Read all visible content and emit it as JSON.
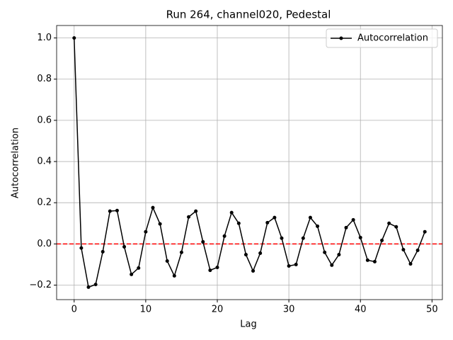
{
  "chart_data": {
    "type": "line",
    "title": "Run 264, channel020, Pedestal",
    "x_label": "Lag",
    "y_label": "Autocorrelation",
    "x": [
      0,
      1,
      2,
      3,
      4,
      5,
      6,
      7,
      8,
      9,
      10,
      11,
      12,
      13,
      14,
      15,
      16,
      17,
      18,
      19,
      20,
      21,
      22,
      23,
      24,
      25,
      26,
      27,
      28,
      29,
      30,
      31,
      32,
      33,
      34,
      35,
      36,
      37,
      38,
      39,
      40,
      41,
      42,
      43,
      44,
      45,
      46,
      47,
      48,
      49
    ],
    "series": [
      {
        "name": "Autocorrelation",
        "color": "#000000",
        "values": [
          1.0,
          -0.02,
          -0.21,
          -0.197,
          -0.038,
          0.159,
          0.162,
          -0.014,
          -0.148,
          -0.117,
          0.059,
          0.176,
          0.097,
          -0.083,
          -0.155,
          -0.041,
          0.131,
          0.159,
          0.01,
          -0.128,
          -0.114,
          0.038,
          0.152,
          0.1,
          -0.052,
          -0.131,
          -0.045,
          0.103,
          0.128,
          0.028,
          -0.107,
          -0.1,
          0.028,
          0.128,
          0.086,
          -0.041,
          -0.103,
          -0.052,
          0.079,
          0.117,
          0.031,
          -0.079,
          -0.086,
          0.017,
          0.1,
          0.083,
          -0.028,
          -0.097,
          -0.031,
          0.059
        ]
      }
    ],
    "hline": {
      "y": 0,
      "color": "#ff0000",
      "style": "dashed"
    },
    "xlim": [
      -2.45,
      51.45
    ],
    "xticks": [
      0,
      10,
      20,
      30,
      40,
      50
    ],
    "ylim": [
      -0.2705,
      1.0605
    ],
    "yticks": [
      {
        "value": -0.2,
        "label": "−0.2"
      },
      {
        "value": 0,
        "label": "0.0"
      },
      {
        "value": 0.2,
        "label": "0.2"
      },
      {
        "value": 0.4,
        "label": "0.4"
      },
      {
        "value": 0.6,
        "label": "0.6"
      },
      {
        "value": 0.8,
        "label": "0.8"
      },
      {
        "value": 1.0,
        "label": "1.0"
      }
    ],
    "grid": true,
    "legend": "upper right"
  }
}
